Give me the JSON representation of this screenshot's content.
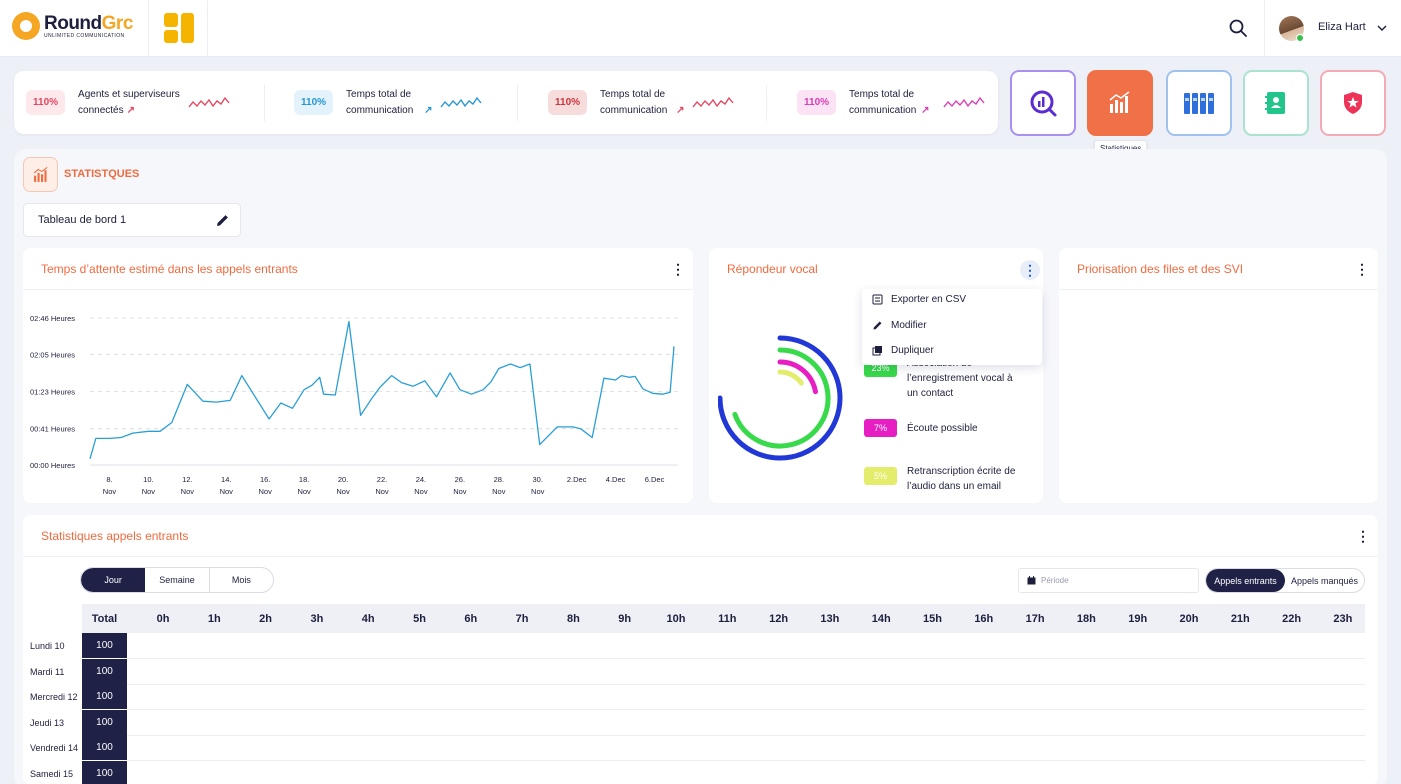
{
  "header": {
    "logo": {
      "name_a": "Round",
      "name_b": "Grc",
      "tagline": "UNLIMITED COMMUNICATION"
    },
    "user_name": "Eliza Hart"
  },
  "kpis": [
    {
      "value": "110%",
      "label_l1": "Agents et superviseurs",
      "label_l2": "connectés",
      "badge_bg": "#fde8ec",
      "badge_fg": "#e3475f",
      "arrow_color": "#e3475f",
      "spark_color": "#e3475f"
    },
    {
      "value": "110%",
      "label_l1": "Temps total de",
      "label_l2": "communication",
      "badge_bg": "#e4f3fb",
      "badge_fg": "#2596d1",
      "arrow_color": "#2596d1",
      "spark_color": "#2596d1"
    },
    {
      "value": "110%",
      "label_l1": "Temps total de",
      "label_l2": "communication",
      "badge_bg": "#f7dcdc",
      "badge_fg": "#c9363e",
      "arrow_color": "#e3475f",
      "spark_color": "#e3475f"
    },
    {
      "value": "110%",
      "label_l1": "Temps total de",
      "label_l2": "communication",
      "badge_bg": "#fbe2f5",
      "badge_fg": "#d63fb3",
      "arrow_color": "#d63fb3",
      "spark_color": "#d63fb3"
    }
  ],
  "apps": [
    {
      "name": "analytics",
      "border": "#a98ff0",
      "bg": "#ffffff"
    },
    {
      "name": "statistiques",
      "border": "#f07148",
      "bg": "#f07148"
    },
    {
      "name": "archives",
      "border": "#9fc2ef",
      "bg": "#ffffff"
    },
    {
      "name": "contacts",
      "border": "#a9e3cf",
      "bg": "#ffffff"
    },
    {
      "name": "security",
      "border": "#f3aab5",
      "bg": "#ffffff"
    }
  ],
  "tooltip": "Statistiques",
  "section": {
    "title": "STATISTQUES",
    "dashboard": "Tableau de bord 1"
  },
  "wait_card": {
    "title": "Temps d’attente estimé dans les appels entrants"
  },
  "voice_card": {
    "title": "Répondeur vocal",
    "menu": {
      "export": "Exporter en CSV",
      "edit": "Modifier",
      "duplicate": "Dupliquer"
    },
    "legend": [
      {
        "value": "23%",
        "l1": "Association de",
        "l2": "l’enregistrement vocal à",
        "l3": "un contact",
        "bg": "#38d94a",
        "fg": "#ffffff"
      },
      {
        "value": "7%",
        "l1": "Écoute possible",
        "l2": "",
        "l3": "",
        "bg": "#e71fc2",
        "fg": "#ffffff"
      },
      {
        "value": "5%",
        "l1": "Retranscription écrite de",
        "l2": "l’audio dans un email",
        "l3": "",
        "bg": "#e3ec6b",
        "fg": "#ffffff"
      }
    ]
  },
  "prio_card": {
    "title": "Priorisation des files et des SVI"
  },
  "calls_card": {
    "title": "Statistiques appels entrants",
    "segments": [
      "Jour",
      "Semaine",
      "Mois"
    ],
    "period_placeholder": "Période",
    "toggle": [
      "Appels entrants",
      "Appels manqués"
    ],
    "columns": [
      "Total",
      "0h",
      "1h",
      "2h",
      "3h",
      "4h",
      "5h",
      "6h",
      "7h",
      "8h",
      "9h",
      "10h",
      "11h",
      "12h",
      "13h",
      "14h",
      "15h",
      "16h",
      "17h",
      "18h",
      "19h",
      "20h",
      "21h",
      "22h",
      "23h"
    ],
    "rows": [
      {
        "day": "Lundi 10",
        "total": "100"
      },
      {
        "day": "Mardi 11",
        "total": "100"
      },
      {
        "day": "Mercredi 12",
        "total": "100"
      },
      {
        "day": "Jeudi 13",
        "total": "100"
      },
      {
        "day": "Vendredi 14",
        "total": "100"
      },
      {
        "day": "Samedi 15",
        "total": "100"
      }
    ]
  },
  "chart_data": {
    "type": "line",
    "title": "Temps d’attente estimé dans les appels entrants",
    "y_ticks": [
      "00:00 Heures",
      "00:41 Heures",
      "01:23 Heures",
      "02:05 Heures",
      "02:46 Heures"
    ],
    "y_tick_minutes": [
      0,
      41,
      83,
      125,
      166
    ],
    "x_ticks": [
      {
        "l1": "8.",
        "l2": "Nov"
      },
      {
        "l1": "10.",
        "l2": "Nov"
      },
      {
        "l1": "12.",
        "l2": "Nov"
      },
      {
        "l1": "14.",
        "l2": "Nov"
      },
      {
        "l1": "16.",
        "l2": "Nov"
      },
      {
        "l1": "18.",
        "l2": "Nov"
      },
      {
        "l1": "20.",
        "l2": "Nov"
      },
      {
        "l1": "22.",
        "l2": "Nov"
      },
      {
        "l1": "24.",
        "l2": "Nov"
      },
      {
        "l1": "26.",
        "l2": "Nov"
      },
      {
        "l1": "28.",
        "l2": "Nov"
      },
      {
        "l1": "30.",
        "l2": "Nov"
      },
      {
        "l1": "2.Dec",
        "l2": ""
      },
      {
        "l1": "4.Dec",
        "l2": ""
      },
      {
        "l1": "6.Dec",
        "l2": ""
      }
    ],
    "x_day_range": [
      7,
      37
    ],
    "ylim": [
      0,
      166
    ],
    "series": [
      {
        "color": "#2a9fd6",
        "points": [
          [
            7.0,
            7
          ],
          [
            7.3,
            30
          ],
          [
            8.0,
            30
          ],
          [
            8.6,
            31
          ],
          [
            9.2,
            36
          ],
          [
            10.0,
            38
          ],
          [
            10.6,
            38
          ],
          [
            11.2,
            48
          ],
          [
            12.0,
            91
          ],
          [
            12.8,
            72
          ],
          [
            13.5,
            71
          ],
          [
            14.2,
            73
          ],
          [
            14.8,
            101
          ],
          [
            15.4,
            80
          ],
          [
            16.2,
            52
          ],
          [
            16.8,
            70
          ],
          [
            17.4,
            64
          ],
          [
            18.0,
            85
          ],
          [
            18.4,
            90
          ],
          [
            18.8,
            99
          ],
          [
            19.0,
            80
          ],
          [
            19.6,
            79
          ],
          [
            20.3,
            162
          ],
          [
            20.9,
            56
          ],
          [
            21.5,
            76
          ],
          [
            21.9,
            88
          ],
          [
            22.5,
            101
          ],
          [
            23.0,
            93
          ],
          [
            23.6,
            89
          ],
          [
            24.2,
            95
          ],
          [
            24.8,
            77
          ],
          [
            25.5,
            104
          ],
          [
            26.0,
            85
          ],
          [
            26.6,
            80
          ],
          [
            27.2,
            85
          ],
          [
            27.6,
            94
          ],
          [
            28.0,
            109
          ],
          [
            28.6,
            114
          ],
          [
            29.1,
            110
          ],
          [
            29.6,
            114
          ],
          [
            30.1,
            23
          ],
          [
            31.0,
            43
          ],
          [
            31.8,
            43
          ],
          [
            32.2,
            41
          ],
          [
            32.8,
            31
          ],
          [
            33.4,
            98
          ],
          [
            34.0,
            96
          ],
          [
            34.3,
            101
          ],
          [
            34.7,
            99
          ],
          [
            35.0,
            100
          ],
          [
            35.4,
            86
          ],
          [
            35.9,
            81
          ],
          [
            36.4,
            80
          ],
          [
            36.8,
            82
          ],
          [
            37.0,
            134
          ]
        ]
      }
    ]
  },
  "donut_data": {
    "type": "pie",
    "slices": [
      {
        "label": "Association de l’enregistrement vocal à un contact",
        "value": 23,
        "color": "#38d94a"
      },
      {
        "label": "Écoute possible",
        "value": 7,
        "color": "#e71fc2"
      },
      {
        "label": "Retranscription écrite de l’audio dans un email",
        "value": 5,
        "color": "#e3ec6b"
      }
    ]
  }
}
